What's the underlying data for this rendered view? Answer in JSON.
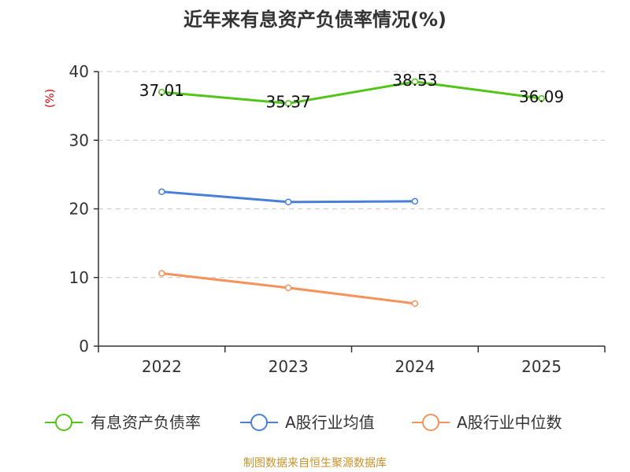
{
  "chart_data": {
    "type": "line",
    "title": "近年来有息资产负债率情况(%)",
    "ylabel": "(%)",
    "xlabel": "",
    "categories": [
      "2022",
      "2023",
      "2024",
      "2025"
    ],
    "ylim": [
      0,
      40
    ],
    "yticks": [
      0,
      10,
      20,
      30,
      40
    ],
    "grid": true,
    "legend_position": "bottom",
    "series": [
      {
        "name": "有息资产负债率",
        "color": "#52c41a",
        "values": [
          37.01,
          35.37,
          38.53,
          36.09
        ],
        "labels": [
          "37.01",
          "35.37",
          "38.53",
          "36.09"
        ]
      },
      {
        "name": "A股行业均值",
        "color": "#4a7fd8",
        "values": [
          22.5,
          21.0,
          21.1,
          null
        ]
      },
      {
        "name": "A股行业中位数",
        "color": "#f4935c",
        "values": [
          10.6,
          8.5,
          6.2,
          null
        ]
      }
    ]
  },
  "source": "制图数据来自恒生聚源数据库"
}
